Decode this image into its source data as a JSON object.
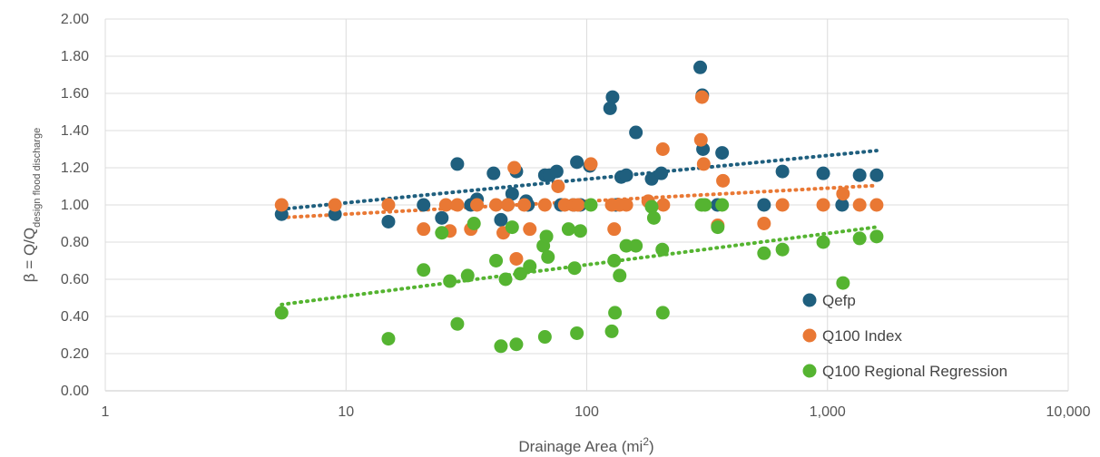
{
  "chart_data": {
    "type": "scatter",
    "title": "",
    "xlabel": "Drainage Area (mi",
    "xlabel_sup": "2",
    "xlabel_end": ")",
    "ylabel": "β = Q/Q",
    "ylabel_sub": "design flood discharge",
    "x_scale": "log",
    "xlim": [
      1,
      10000
    ],
    "ylim": [
      0,
      2
    ],
    "x_ticks": [
      "1",
      "10",
      "100",
      "1,000",
      "10,000"
    ],
    "y_ticks": [
      "0.00",
      "0.20",
      "0.40",
      "0.60",
      "0.80",
      "1.00",
      "1.20",
      "1.40",
      "1.60",
      "1.80",
      "2.00"
    ],
    "grid": true,
    "legend_position": "bottom-right",
    "series": [
      {
        "name": "Qefp",
        "color": "#1f5f7e",
        "trendline": "log",
        "points": [
          [
            5.4,
            0.95
          ],
          [
            9,
            0.95
          ],
          [
            15,
            0.91
          ],
          [
            21,
            1.0
          ],
          [
            25,
            0.93
          ],
          [
            29,
            1.22
          ],
          [
            33,
            1.0
          ],
          [
            35,
            1.03
          ],
          [
            41,
            1.17
          ],
          [
            44,
            0.92
          ],
          [
            47,
            1.0
          ],
          [
            49,
            1.06
          ],
          [
            51,
            1.18
          ],
          [
            56,
            1.02
          ],
          [
            57,
            1.0
          ],
          [
            67,
            1.16
          ],
          [
            70,
            1.16
          ],
          [
            75,
            1.18
          ],
          [
            78,
            1.0
          ],
          [
            88,
            1.0
          ],
          [
            91,
            1.23
          ],
          [
            94,
            1.0
          ],
          [
            103,
            1.21
          ],
          [
            125,
            1.52
          ],
          [
            128,
            1.58
          ],
          [
            132,
            1.0
          ],
          [
            139,
            1.15
          ],
          [
            146,
            1.16
          ],
          [
            160,
            1.39
          ],
          [
            186,
            1.14
          ],
          [
            204,
            1.17
          ],
          [
            296,
            1.74
          ],
          [
            302,
            1.59
          ],
          [
            304,
            1.3
          ],
          [
            349,
            1.0
          ],
          [
            365,
            1.28
          ],
          [
            545,
            1.0
          ],
          [
            650,
            1.18
          ],
          [
            960,
            1.17
          ],
          [
            1150,
            1.0
          ],
          [
            1360,
            1.16
          ],
          [
            1600,
            1.16
          ]
        ]
      },
      {
        "name": "Q100 Index",
        "color": "#e97834",
        "trendline": "log",
        "points": [
          [
            5.4,
            1.0
          ],
          [
            9,
            1.0
          ],
          [
            15,
            1.0
          ],
          [
            21,
            0.87
          ],
          [
            26,
            1.0
          ],
          [
            27,
            0.86
          ],
          [
            29,
            1.0
          ],
          [
            33,
            0.87
          ],
          [
            35,
            1.0
          ],
          [
            42,
            1.0
          ],
          [
            45,
            0.85
          ],
          [
            47,
            1.0
          ],
          [
            50,
            1.2
          ],
          [
            51,
            0.71
          ],
          [
            55,
            1.0
          ],
          [
            58,
            0.87
          ],
          [
            67,
            1.0
          ],
          [
            76,
            1.1
          ],
          [
            81,
            1.0
          ],
          [
            88,
            1.0
          ],
          [
            92,
            1.0
          ],
          [
            104,
            1.22
          ],
          [
            127,
            1.0
          ],
          [
            130,
            0.87
          ],
          [
            137,
            1.0
          ],
          [
            146,
            1.0
          ],
          [
            180,
            1.02
          ],
          [
            207,
            1.3
          ],
          [
            208,
            1.0
          ],
          [
            298,
            1.35
          ],
          [
            301,
            1.58
          ],
          [
            306,
            1.22
          ],
          [
            350,
            0.89
          ],
          [
            368,
            1.13
          ],
          [
            545,
            0.9
          ],
          [
            650,
            1.0
          ],
          [
            960,
            1.0
          ],
          [
            1160,
            1.06
          ],
          [
            1360,
            1.0
          ],
          [
            1600,
            1.0
          ]
        ]
      },
      {
        "name": "Q100 Regional Regression",
        "color": "#55b431",
        "trendline": "log",
        "points": [
          [
            5.4,
            0.42
          ],
          [
            15,
            0.28
          ],
          [
            21,
            0.65
          ],
          [
            25,
            0.85
          ],
          [
            27,
            0.59
          ],
          [
            29,
            0.36
          ],
          [
            32,
            0.62
          ],
          [
            34,
            0.9
          ],
          [
            42,
            0.7
          ],
          [
            44,
            0.24
          ],
          [
            46,
            0.6
          ],
          [
            49,
            0.88
          ],
          [
            51,
            0.25
          ],
          [
            53,
            0.63
          ],
          [
            58,
            0.67
          ],
          [
            66,
            0.78
          ],
          [
            67,
            0.29
          ],
          [
            68,
            0.83
          ],
          [
            69,
            0.72
          ],
          [
            84,
            0.87
          ],
          [
            89,
            0.66
          ],
          [
            91,
            0.31
          ],
          [
            94,
            0.86
          ],
          [
            104,
            1.0
          ],
          [
            127,
            0.32
          ],
          [
            130,
            0.7
          ],
          [
            131,
            0.42
          ],
          [
            137,
            0.62
          ],
          [
            146,
            0.78
          ],
          [
            160,
            0.78
          ],
          [
            186,
            0.99
          ],
          [
            190,
            0.93
          ],
          [
            206,
            0.76
          ],
          [
            207,
            0.42
          ],
          [
            300,
            1.0
          ],
          [
            310,
            1.0
          ],
          [
            350,
            0.88
          ],
          [
            365,
            1.0
          ],
          [
            545,
            0.74
          ],
          [
            650,
            0.76
          ],
          [
            960,
            0.8
          ],
          [
            1160,
            0.58
          ],
          [
            1360,
            0.82
          ],
          [
            1600,
            0.83
          ]
        ]
      }
    ]
  }
}
